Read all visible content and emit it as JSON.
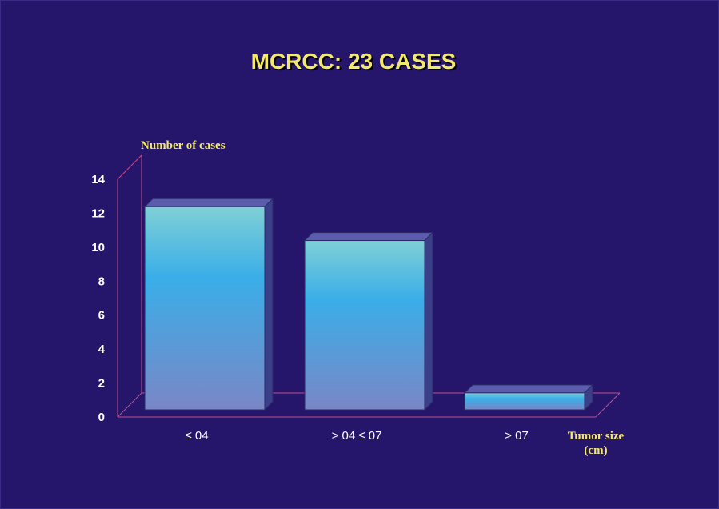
{
  "chart_data": {
    "type": "bar",
    "title": "MCRCC: 23 CASES",
    "ylabel": "Number of cases",
    "xlabel_line1": "Tumor size",
    "xlabel_line2": "(cm)",
    "categories": [
      "≤ 04",
      "> 04 ≤ 07",
      "> 07"
    ],
    "values": [
      12,
      10,
      1
    ],
    "ylim": [
      0,
      14
    ],
    "yticks": [
      0,
      2,
      4,
      6,
      8,
      10,
      12,
      14
    ],
    "grid": false,
    "style": "3d"
  },
  "colors": {
    "background": "#25166b",
    "title": "#f3e86a",
    "axis_title": "#f3e86a",
    "tick_label": "#ffffff",
    "axis_line": "#c0508a",
    "bar_top": "#7fd0d6",
    "bar_mid": "#3aaee8",
    "bar_bottom": "#7a86c6",
    "bar_side": "#3b3f8a",
    "bar_cap": "#5a5cae"
  }
}
